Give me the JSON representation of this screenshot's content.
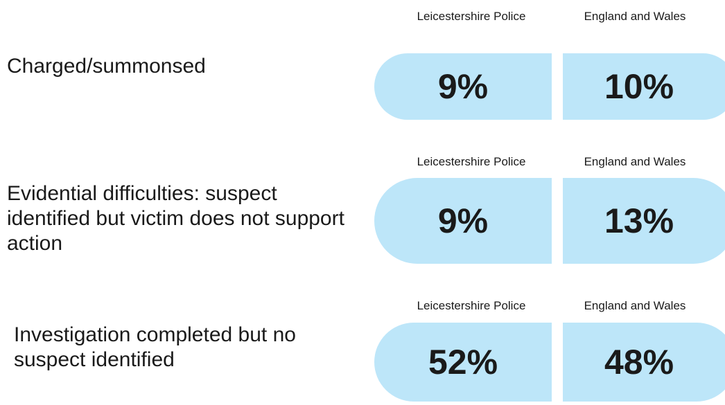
{
  "rows": [
    {
      "label": "Charged/summonsed",
      "columns": [
        {
          "heading": "Leicestershire Police",
          "value": "9%"
        },
        {
          "heading": "England and Wales",
          "value": "10%"
        }
      ]
    },
    {
      "label": "Evidential difficulties: suspect identified but victim does not support action",
      "columns": [
        {
          "heading": "Leicestershire Police",
          "value": "9%"
        },
        {
          "heading": "England and Wales",
          "value": "13%"
        }
      ]
    },
    {
      "label": "Investigation completed but no suspect identified",
      "columns": [
        {
          "heading": "Leicestershire Police",
          "value": "52%"
        },
        {
          "heading": "England and Wales",
          "value": "48%"
        }
      ]
    }
  ]
}
